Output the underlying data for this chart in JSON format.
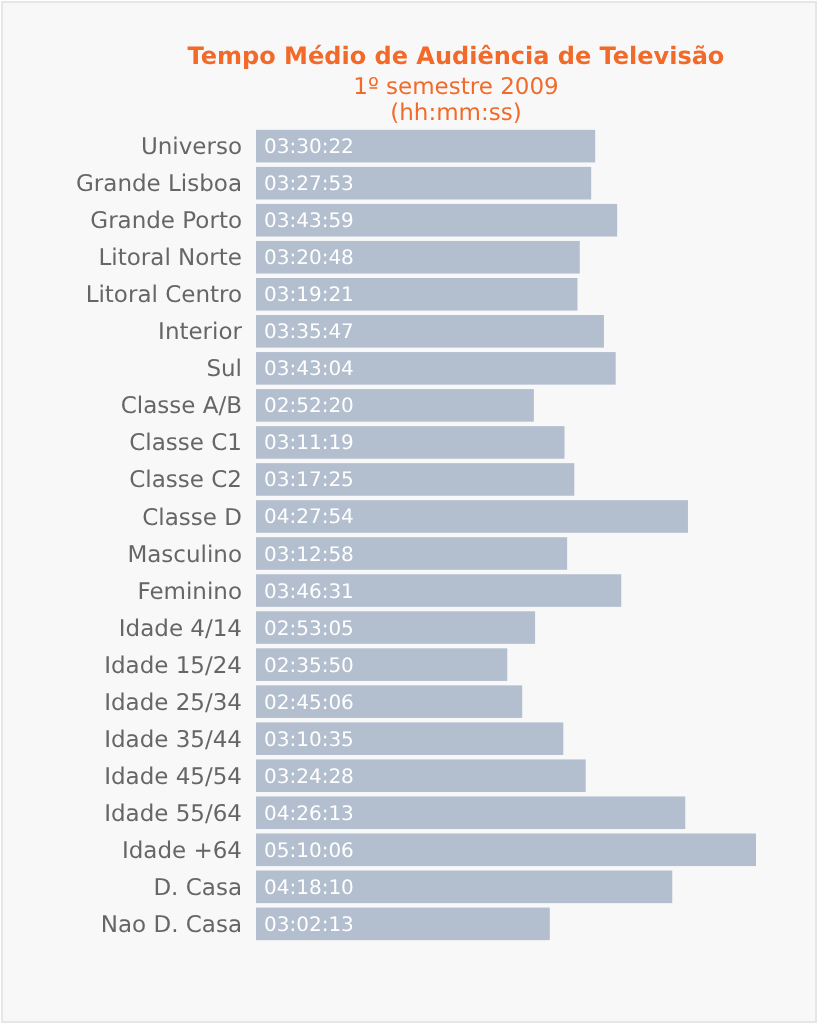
{
  "chart_data": {
    "type": "bar",
    "orientation": "horizontal",
    "title": "Tempo Médio de Audiência  de Televisão",
    "subtitle": "1º semestre 2009\n(hh:mm:ss)",
    "categories": [
      "Universo",
      "Grande Lisboa",
      "Grande Porto",
      "Litoral Norte",
      "Litoral Centro",
      "Interior",
      "Sul",
      "Classe A/B",
      "Classe C1",
      "Classe C2",
      "Classe D",
      "Masculino",
      "Feminino",
      "Idade 4/14",
      "Idade 15/24",
      "Idade 25/34",
      "Idade 35/44",
      "Idade 45/54",
      "Idade 55/64",
      "Idade +64",
      "D. Casa",
      "Nao D. Casa"
    ],
    "values": [
      3.5061,
      3.4647,
      3.7331,
      3.3467,
      3.3225,
      3.5964,
      3.7178,
      2.8722,
      3.1886,
      3.2903,
      4.465,
      3.2161,
      3.7753,
      2.8847,
      2.5972,
      2.7517,
      3.1764,
      3.4078,
      4.4369,
      5.1683,
      4.3028,
      3.0369
    ],
    "value_labels": [
      "03:30:22",
      "03:27:53",
      "03:43:59",
      "03:20:48",
      "03:19:21",
      "03:35:47",
      "03:43:04",
      "02:52:20",
      "03:11:19",
      "03:17:25",
      "04:27:54",
      "03:12:58",
      "03:46:31",
      "02:53:05",
      "02:35:50",
      "02:45:06",
      "03:10:35",
      "03:24:28",
      "04:26:13",
      "05:10:06",
      "04:18:10",
      "03:02:13"
    ],
    "color": "#b3bfcf"
  }
}
